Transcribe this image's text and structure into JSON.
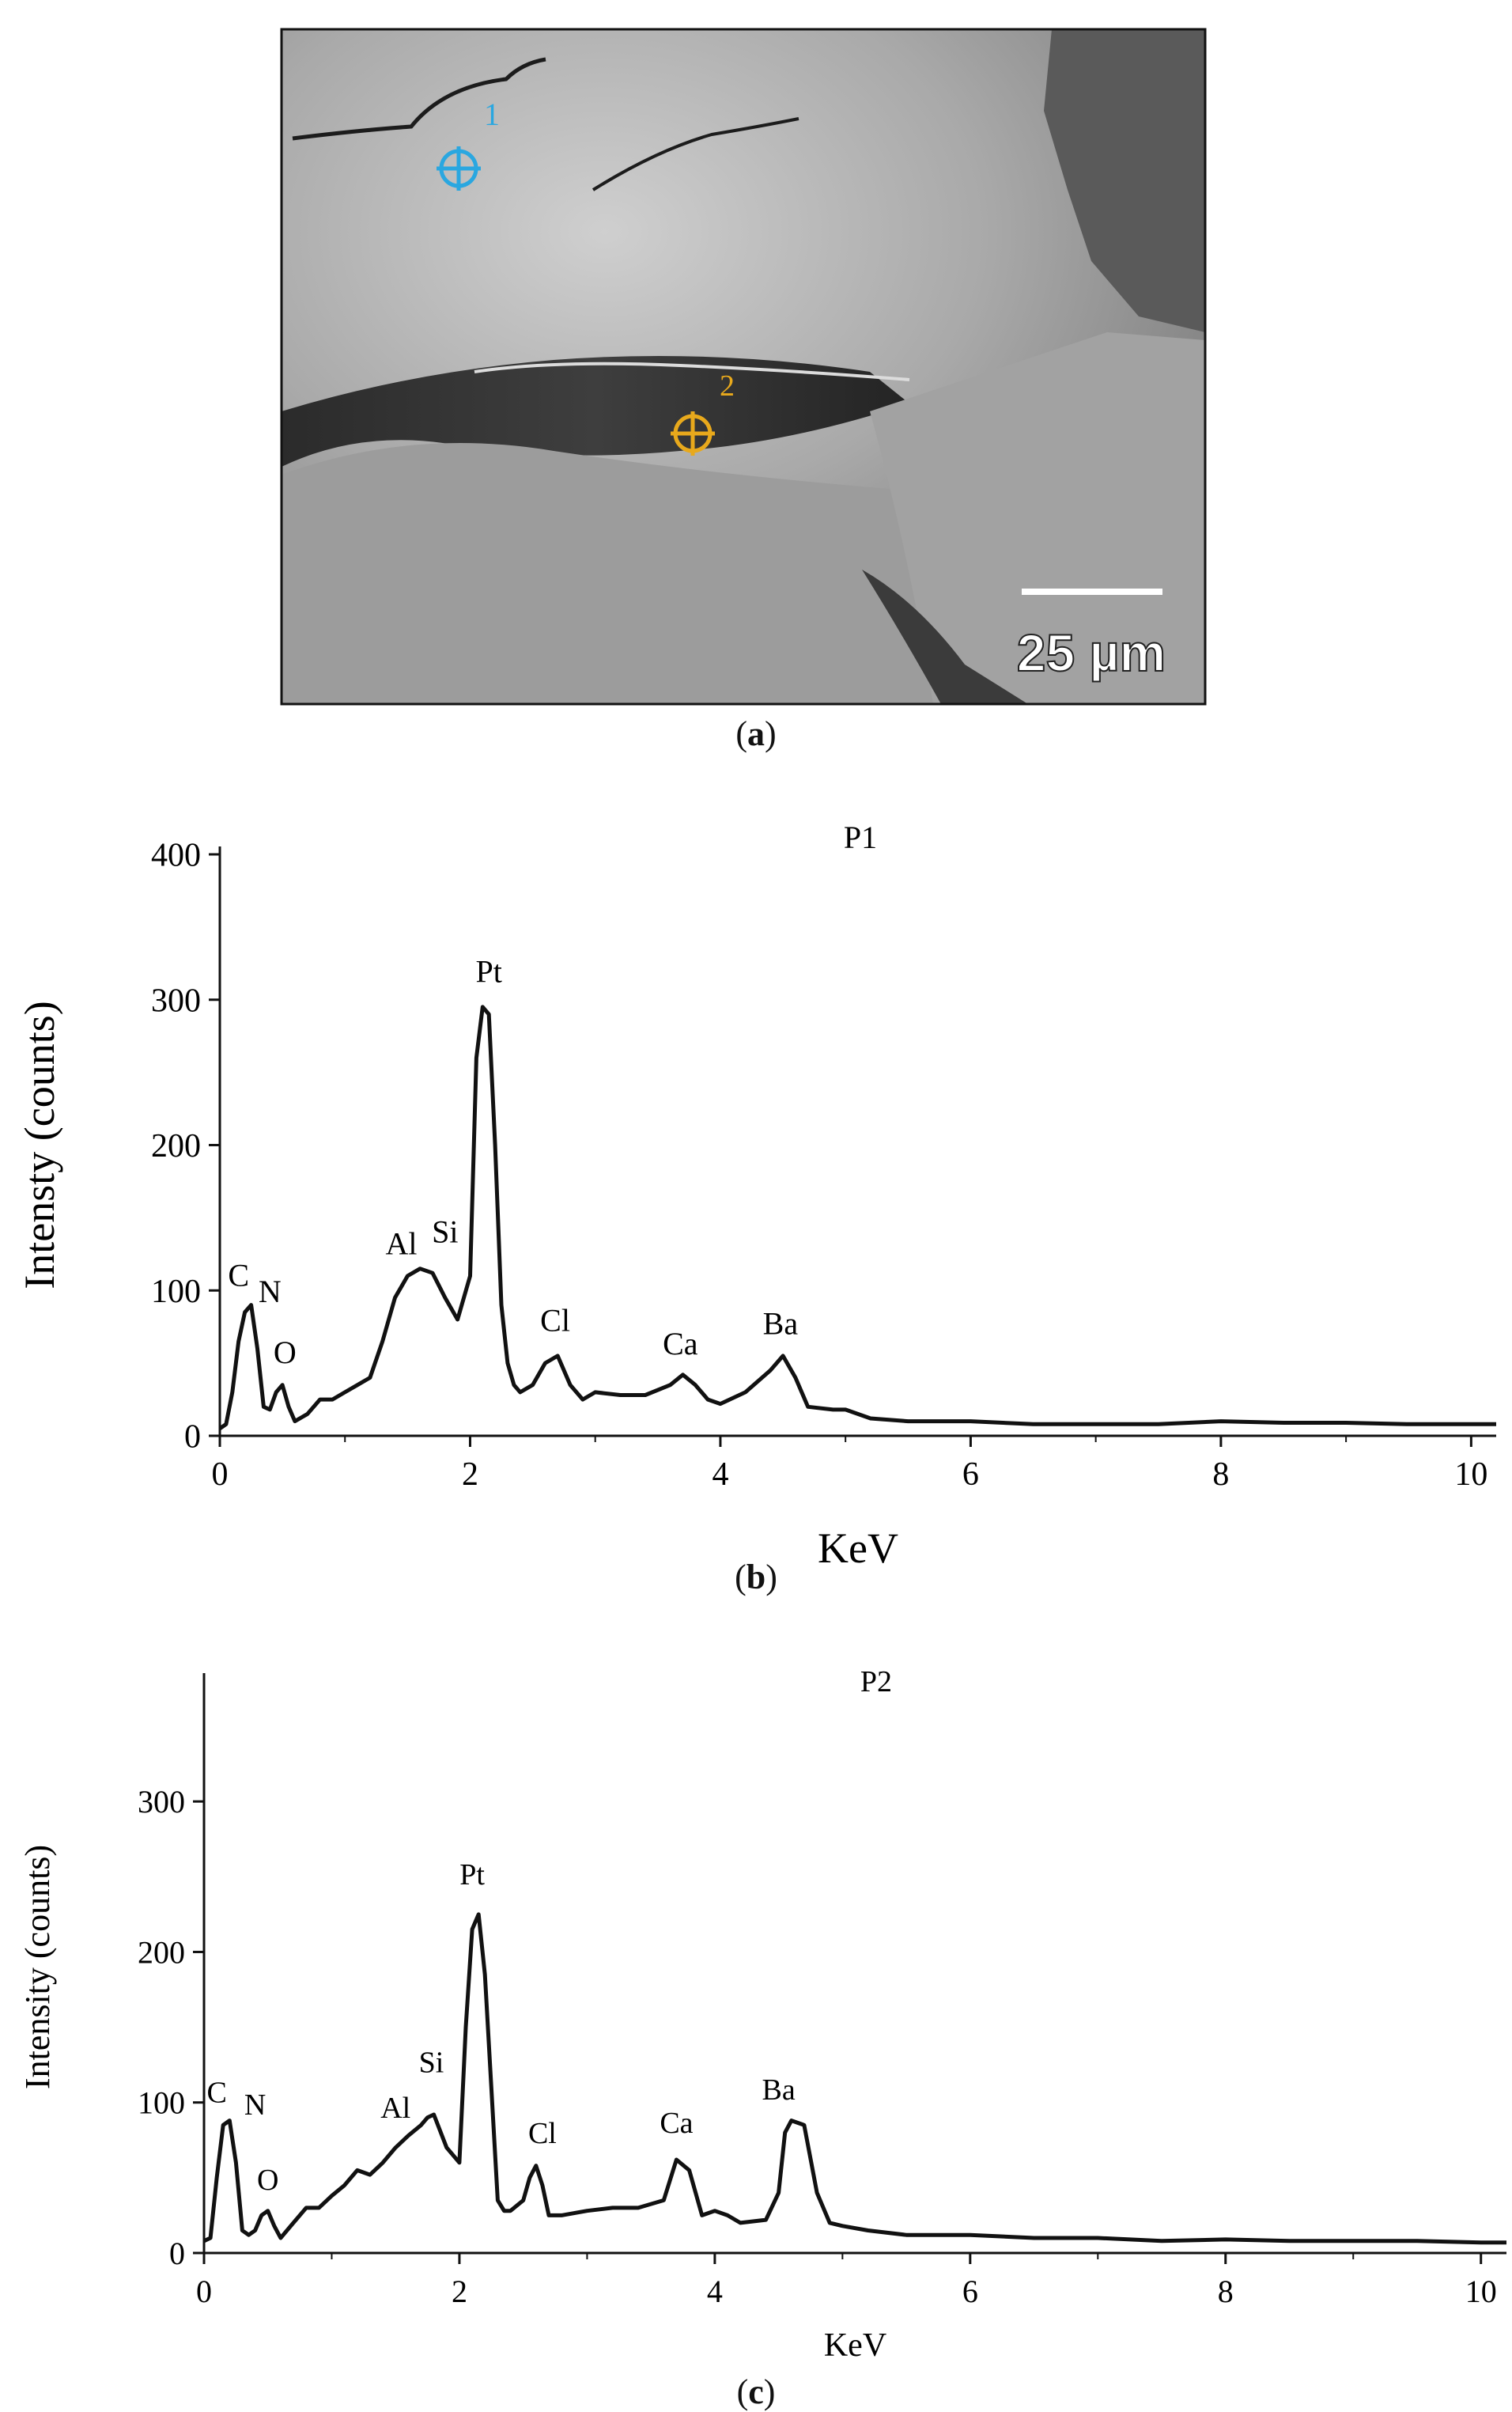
{
  "figure": {
    "panel_a": {
      "caption_open": "(",
      "caption_letter": "a",
      "caption_close": ")",
      "point_labels": [
        "1",
        "2"
      ],
      "scale_bar_label": "25 µm"
    },
    "panel_b": {
      "caption_open": "(",
      "caption_letter": "b",
      "caption_close": ")"
    },
    "panel_c": {
      "caption_open": "(",
      "caption_letter": "c",
      "caption_close": ")"
    }
  },
  "chart_data": [
    {
      "type": "line",
      "title": "P1",
      "xlabel": "KeV",
      "ylabel": "Intensty (counts)",
      "xlim": [
        0,
        10.2
      ],
      "ylim": [
        0,
        400
      ],
      "xticks": [
        0,
        2,
        4,
        6,
        8,
        10
      ],
      "yticks": [
        0,
        100,
        200,
        300,
        400
      ],
      "grid": false,
      "series": [
        {
          "x": [
            0.0,
            0.05,
            0.1,
            0.15,
            0.2,
            0.25,
            0.3,
            0.35,
            0.4,
            0.45,
            0.5,
            0.55,
            0.6,
            0.7,
            0.8,
            0.9,
            1.0,
            1.1,
            1.2,
            1.3,
            1.4,
            1.5,
            1.6,
            1.7,
            1.8,
            1.9,
            2.0,
            2.05,
            2.1,
            2.15,
            2.2,
            2.25,
            2.3,
            2.35,
            2.4,
            2.5,
            2.6,
            2.7,
            2.8,
            2.9,
            3.0,
            3.2,
            3.4,
            3.6,
            3.7,
            3.8,
            3.9,
            4.0,
            4.2,
            4.4,
            4.5,
            4.6,
            4.7,
            4.9,
            5.0,
            5.2,
            5.5,
            6.0,
            6.5,
            7.0,
            7.5,
            8.0,
            8.5,
            9.0,
            9.5,
            10.0,
            10.2
          ],
          "y": [
            5,
            8,
            30,
            65,
            85,
            90,
            60,
            20,
            18,
            30,
            35,
            20,
            10,
            15,
            25,
            25,
            30,
            35,
            40,
            65,
            95,
            110,
            115,
            112,
            95,
            80,
            110,
            260,
            295,
            290,
            200,
            90,
            50,
            35,
            30,
            35,
            50,
            55,
            35,
            25,
            30,
            28,
            28,
            35,
            42,
            35,
            25,
            22,
            30,
            45,
            55,
            40,
            20,
            18,
            18,
            12,
            10,
            10,
            8,
            8,
            8,
            10,
            9,
            9,
            8,
            8,
            8
          ]
        }
      ],
      "annotations": [
        {
          "text": "C",
          "x": 0.15,
          "y": 103
        },
        {
          "text": "N",
          "x": 0.4,
          "y": 92
        },
        {
          "text": "O",
          "x": 0.52,
          "y": 50
        },
        {
          "text": "Al",
          "x": 1.45,
          "y": 125
        },
        {
          "text": "Si",
          "x": 1.8,
          "y": 133
        },
        {
          "text": "Pt",
          "x": 2.15,
          "y": 312
        },
        {
          "text": "Cl",
          "x": 2.68,
          "y": 72
        },
        {
          "text": "Ca",
          "x": 3.68,
          "y": 56
        },
        {
          "text": "Ba",
          "x": 4.48,
          "y": 70
        }
      ]
    },
    {
      "type": "line",
      "title": "P2",
      "xlabel": "KeV",
      "ylabel": "Intensity (counts)",
      "xlim": [
        0,
        10.2
      ],
      "ylim": [
        0,
        380
      ],
      "xticks": [
        0,
        2,
        4,
        6,
        8,
        10
      ],
      "yticks": [
        0,
        100,
        200,
        300
      ],
      "grid": false,
      "series": [
        {
          "x": [
            0.0,
            0.05,
            0.1,
            0.15,
            0.2,
            0.25,
            0.3,
            0.35,
            0.4,
            0.45,
            0.5,
            0.55,
            0.6,
            0.7,
            0.8,
            0.9,
            1.0,
            1.1,
            1.2,
            1.3,
            1.4,
            1.5,
            1.6,
            1.7,
            1.75,
            1.8,
            1.9,
            2.0,
            2.05,
            2.1,
            2.15,
            2.2,
            2.25,
            2.3,
            2.35,
            2.4,
            2.5,
            2.55,
            2.6,
            2.65,
            2.7,
            2.8,
            3.0,
            3.2,
            3.4,
            3.6,
            3.7,
            3.8,
            3.9,
            4.0,
            4.1,
            4.2,
            4.4,
            4.5,
            4.55,
            4.6,
            4.7,
            4.8,
            4.9,
            5.0,
            5.2,
            5.5,
            6.0,
            6.5,
            7.0,
            7.5,
            8.0,
            8.5,
            9.0,
            9.5,
            10.0,
            10.2
          ],
          "y": [
            8,
            10,
            50,
            85,
            88,
            60,
            15,
            12,
            15,
            25,
            28,
            18,
            10,
            20,
            30,
            30,
            38,
            45,
            55,
            52,
            60,
            70,
            78,
            85,
            90,
            92,
            70,
            60,
            150,
            215,
            225,
            185,
            110,
            35,
            28,
            28,
            35,
            50,
            58,
            45,
            25,
            25,
            28,
            30,
            30,
            35,
            62,
            55,
            25,
            28,
            25,
            20,
            22,
            40,
            80,
            88,
            85,
            40,
            20,
            18,
            15,
            12,
            12,
            10,
            10,
            8,
            9,
            8,
            8,
            8,
            7,
            7
          ]
        }
      ],
      "annotations": [
        {
          "text": "C",
          "x": 0.1,
          "y": 100
        },
        {
          "text": "N",
          "x": 0.4,
          "y": 92
        },
        {
          "text": "O",
          "x": 0.5,
          "y": 42
        },
        {
          "text": "Al",
          "x": 1.5,
          "y": 90
        },
        {
          "text": "Si",
          "x": 1.78,
          "y": 120
        },
        {
          "text": "Pt",
          "x": 2.1,
          "y": 245
        },
        {
          "text": "Cl",
          "x": 2.65,
          "y": 73
        },
        {
          "text": "Ca",
          "x": 3.7,
          "y": 80
        },
        {
          "text": "Ba",
          "x": 4.5,
          "y": 102
        }
      ]
    }
  ]
}
